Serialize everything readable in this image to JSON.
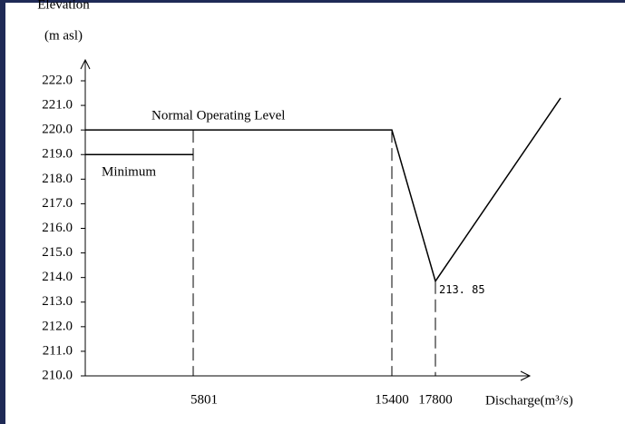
{
  "chart_data": {
    "type": "line",
    "y_label": [
      "Elevation",
      "(m asl)"
    ],
    "x_label": "Discharge(m³/s)",
    "ylim": [
      210,
      222
    ],
    "yticks": [
      {
        "value": 210,
        "label": "210.0"
      },
      {
        "value": 211,
        "label": "211.0"
      },
      {
        "value": 212,
        "label": "212.0"
      },
      {
        "value": 213,
        "label": "213.0"
      },
      {
        "value": 214,
        "label": "214.0"
      },
      {
        "value": 215,
        "label": "215.0"
      },
      {
        "value": 216,
        "label": "216.0"
      },
      {
        "value": 217,
        "label": "217.0"
      },
      {
        "value": 218,
        "label": "218.0"
      },
      {
        "value": 219,
        "label": "219.0"
      },
      {
        "value": 220,
        "label": "220.0"
      },
      {
        "value": 221,
        "label": "221.0"
      },
      {
        "value": 222,
        "label": "222.0"
      }
    ],
    "xticks": [
      5801,
      15400,
      17800
    ],
    "series": [
      {
        "x": [
          0,
          15400,
          17800,
          24700
        ],
        "values": [
          220,
          220,
          213.85,
          221.3
        ],
        "value_labels": [
          null,
          null,
          "213. 85",
          null
        ],
        "color": "#000000"
      },
      {
        "x": [
          0,
          5801
        ],
        "values": [
          219,
          219
        ],
        "color": "#000000"
      }
    ],
    "annotations": [
      "Normal Operating Level",
      "Minimum"
    ]
  }
}
